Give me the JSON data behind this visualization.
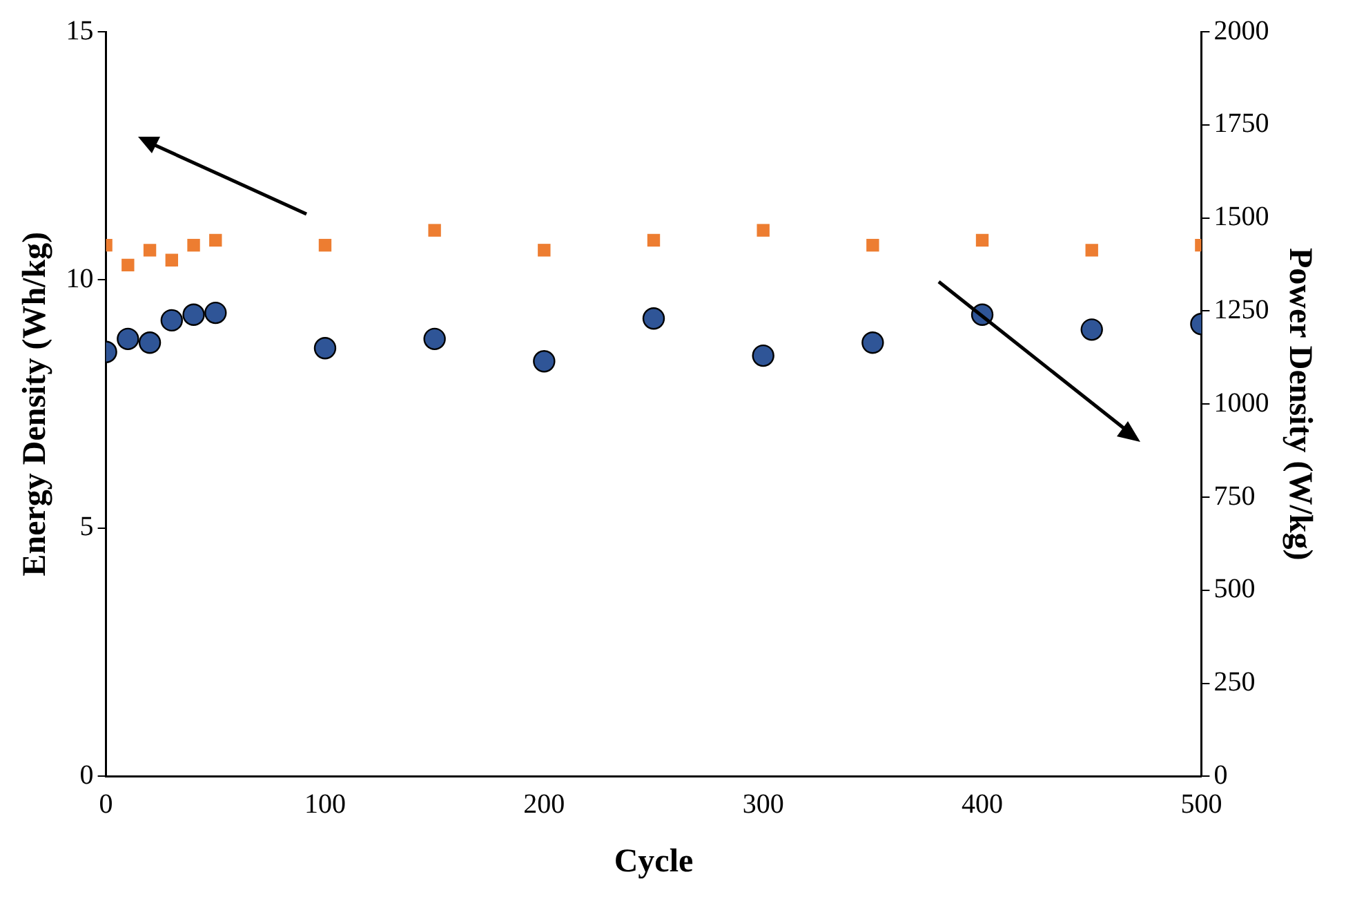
{
  "chart_data": {
    "type": "scatter",
    "xlabel": "Cycle",
    "ylabel": "Energy Density (Wh/kg)",
    "y2label": "Power Density (W/kg)",
    "x": [
      0,
      10,
      20,
      30,
      40,
      50,
      100,
      150,
      200,
      250,
      300,
      350,
      400,
      450,
      500
    ],
    "series": [
      {
        "color": "#ed7d31",
        "marker": "square",
        "values": [
          10.7,
          10.3,
          10.6,
          10.4,
          10.7,
          10.8,
          10.7,
          11.0,
          10.6,
          10.8,
          11.0,
          10.7,
          10.8,
          10.6,
          10.7
        ]
      },
      {
        "color": "#2f5597",
        "marker": "circle",
        "axis": "y2",
        "values": [
          1140,
          1175,
          1165,
          1225,
          1240,
          1245,
          1150,
          1175,
          1115,
          1230,
          1130,
          1165,
          1240,
          1200,
          1215
        ]
      }
    ],
    "xlim": [
      0,
      500
    ],
    "xticks": [
      0,
      100,
      200,
      300,
      400,
      500
    ],
    "ylim": [
      0,
      15
    ],
    "yticks": [
      0,
      5,
      10,
      15
    ],
    "y2lim": [
      0,
      2000
    ],
    "y2ticks": [
      0,
      250,
      500,
      750,
      1000,
      1250,
      1500,
      1750,
      2000
    ],
    "grid": false,
    "legend": false
  }
}
